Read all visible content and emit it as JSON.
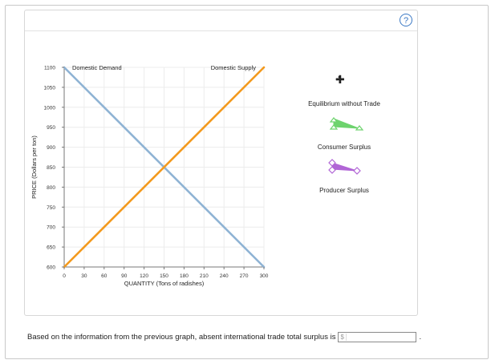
{
  "help": {
    "label": "?"
  },
  "chart_data": {
    "type": "line",
    "xlabel": "QUANTITY (Tons of radishes)",
    "ylabel": "PRICE (Dollars per ton)",
    "xlim": [
      0,
      300
    ],
    "ylim": [
      600,
      1100
    ],
    "x_ticks": [
      "0",
      "30",
      "60",
      "90",
      "120",
      "150",
      "180",
      "210",
      "240",
      "270",
      "300"
    ],
    "y_ticks": [
      "600",
      "650",
      "700",
      "750",
      "800",
      "850",
      "900",
      "950",
      "1000",
      "1050",
      "1100"
    ],
    "series": [
      {
        "name": "Domestic Demand",
        "color": "#8fb3d4",
        "points": [
          [
            0,
            1100
          ],
          [
            300,
            600
          ]
        ]
      },
      {
        "name": "Domestic Supply",
        "color": "#f39a1e",
        "points": [
          [
            0,
            600
          ],
          [
            300,
            1100
          ]
        ]
      }
    ]
  },
  "legend": {
    "equilibrium": "Equilibrium without Trade",
    "consumer_surplus": "Consumer Surplus",
    "producer_surplus": "Producer Surplus"
  },
  "colors": {
    "consumer": "#6ed36e",
    "producer": "#b165d6",
    "demand": "#8fb3d4",
    "supply": "#f39a1e"
  },
  "question": {
    "text": "Based on the information from the previous graph, absent international trade total surplus is",
    "prefix": "$",
    "value": "",
    "suffix": "."
  }
}
